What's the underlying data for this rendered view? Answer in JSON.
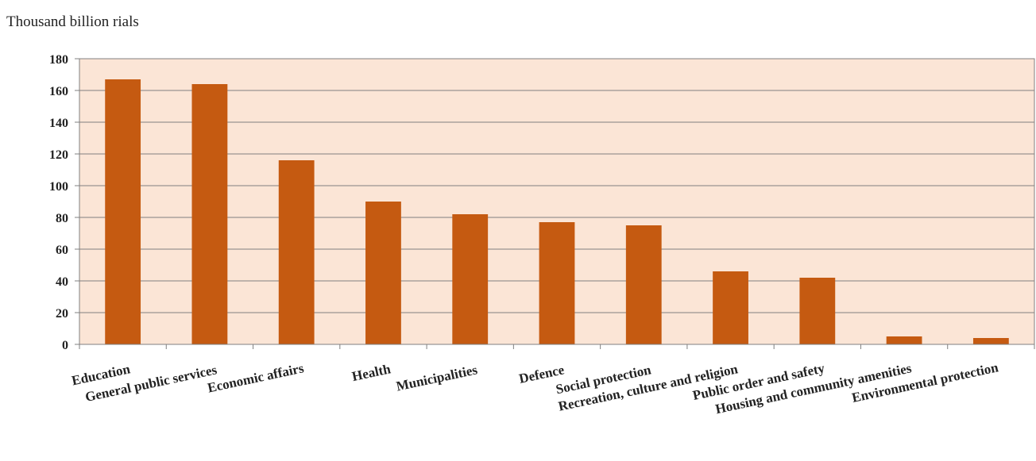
{
  "chart_data": {
    "type": "bar",
    "unit_label": "Thousand billion rials",
    "categories": [
      "Education",
      "General public services",
      "Economic affairs",
      "Health",
      "Municipalities",
      "Defence",
      "Social protection",
      "Recreation, culture and religion",
      "Public order and safety",
      "Housing and community amenities",
      "Environmental protection"
    ],
    "values": [
      167,
      164,
      116,
      90,
      82,
      77,
      75,
      46,
      42,
      5,
      4
    ],
    "y_ticks": [
      "0",
      "20",
      "40",
      "60",
      "80",
      "100",
      "120",
      "140",
      "160",
      "180"
    ],
    "ylim": [
      0,
      180
    ],
    "grid": true,
    "legend": "none",
    "colors": {
      "bar": "#c55a11",
      "plot_background": "#fbe5d6",
      "grid": "#808080",
      "axis": "#808080"
    }
  }
}
